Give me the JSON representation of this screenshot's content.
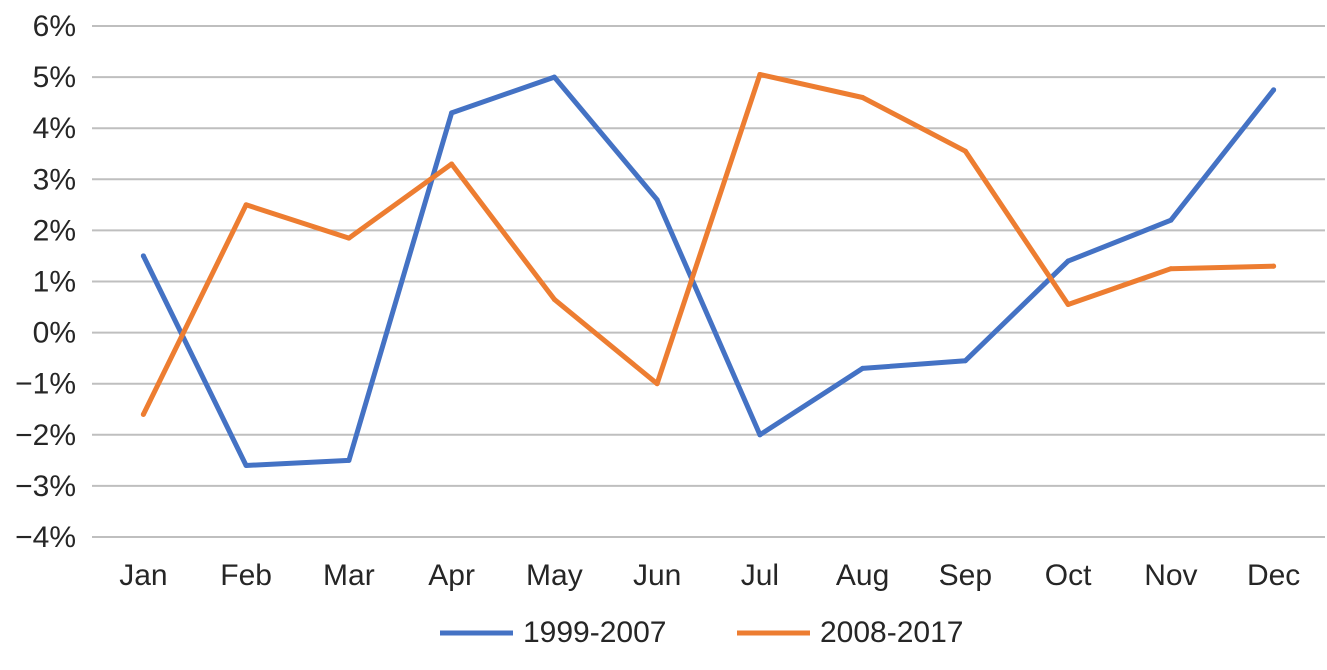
{
  "chart_data": {
    "type": "line",
    "categories": [
      "Jan",
      "Feb",
      "Mar",
      "Apr",
      "May",
      "Jun",
      "Jul",
      "Aug",
      "Sep",
      "Oct",
      "Nov",
      "Dec"
    ],
    "series": [
      {
        "name": "1999-2007",
        "color": "#4472C4",
        "values": [
          1.5,
          -2.6,
          -2.5,
          4.3,
          5.0,
          2.6,
          -2.0,
          -0.7,
          -0.55,
          1.4,
          2.2,
          4.75
        ]
      },
      {
        "name": "2008-2017",
        "color": "#ED7D31",
        "values": [
          -1.6,
          2.5,
          1.85,
          3.3,
          0.65,
          -1.0,
          5.05,
          4.6,
          3.55,
          0.55,
          1.25,
          1.3
        ]
      }
    ],
    "y_ticks": [
      "6%",
      "5%",
      "4%",
      "3%",
      "2%",
      "1%",
      "0%",
      "−1%",
      "−2%",
      "−3%",
      "−4%"
    ],
    "ylim": [
      -4,
      6
    ],
    "y_step": 1,
    "grid": true,
    "grid_color": "#bfbfbf",
    "legend_position": "bottom"
  }
}
